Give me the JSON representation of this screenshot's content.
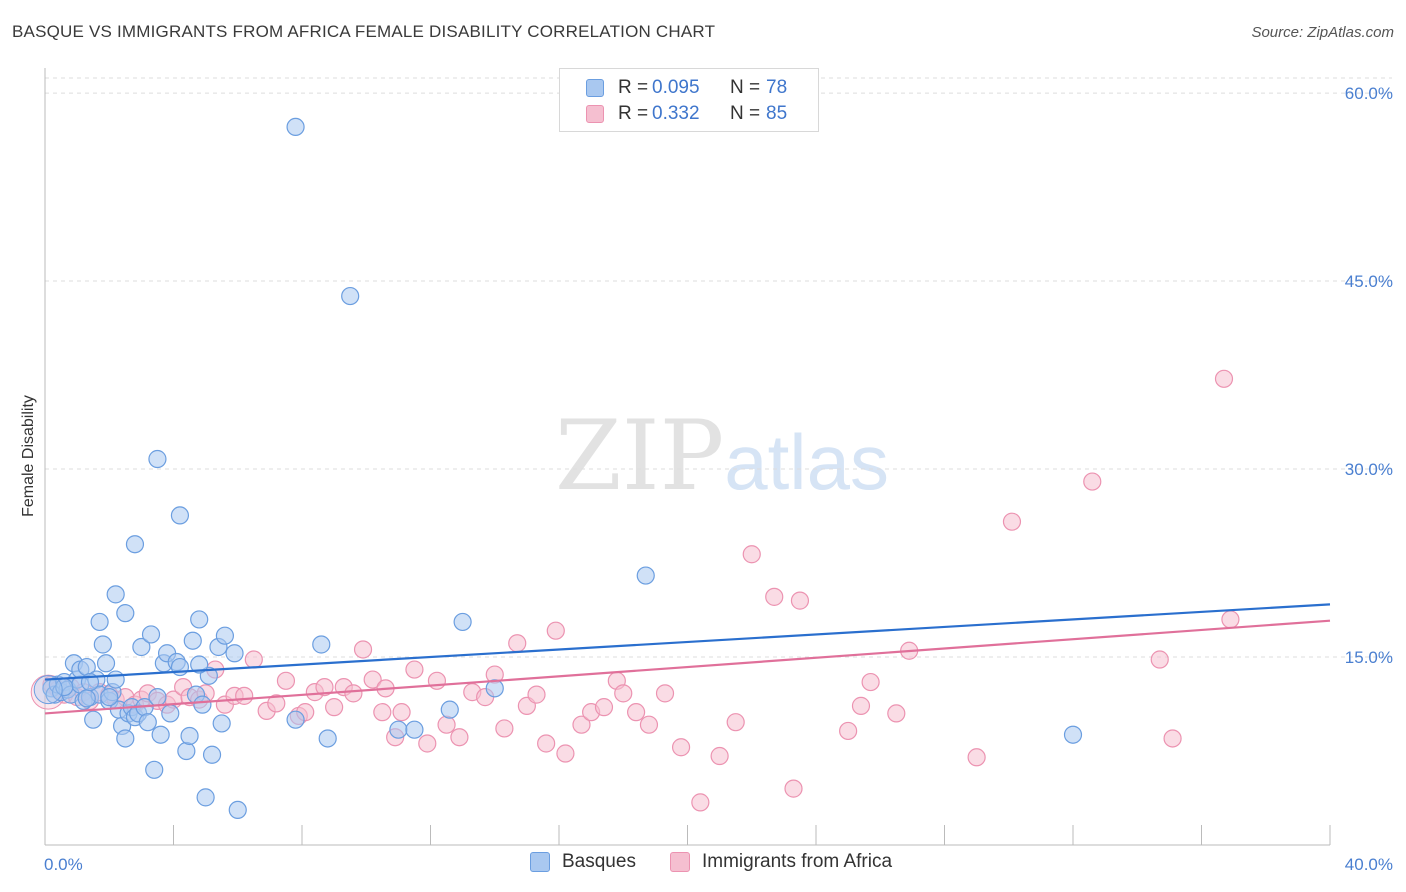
{
  "title": "BASQUE VS IMMIGRANTS FROM AFRICA FEMALE DISABILITY CORRELATION CHART",
  "source": "Source: ZipAtlas.com",
  "watermark": {
    "zip": "ZIP",
    "atlas": "atlas"
  },
  "legend": {
    "rows": [
      {
        "r_label": "R =",
        "r_value": "0.095",
        "n_label": "N =",
        "n_value": "78"
      },
      {
        "r_label": "R =",
        "r_value": "0.332",
        "n_label": "N =",
        "n_value": "85"
      }
    ]
  },
  "bottom_legend": [
    "Basques",
    "Immigrants from Africa"
  ],
  "colors": {
    "basques_fill": "#a9c8f0",
    "basques_stroke": "#6b9ee0",
    "basques_line": "#2a6fce",
    "africa_fill": "#f5bfd0",
    "africa_stroke": "#ec93b1",
    "africa_line": "#e0709a",
    "tick_text": "#4a7fd0",
    "grid": "#dddddd"
  },
  "chart_data": {
    "type": "scatter",
    "title": "BASQUE VS IMMIGRANTS FROM AFRICA FEMALE DISABILITY CORRELATION CHART",
    "xlabel": "",
    "ylabel": "Female Disability",
    "xlim": [
      0,
      40
    ],
    "ylim": [
      0,
      62
    ],
    "x_ticks": [
      "0.0%",
      "40.0%"
    ],
    "y_ticks": [
      {
        "value": 15,
        "label": "15.0%"
      },
      {
        "value": 30,
        "label": "30.0%"
      },
      {
        "value": 45,
        "label": "45.0%"
      },
      {
        "value": 60,
        "label": "60.0%"
      }
    ],
    "grid": "horizontal dashed",
    "legend_position": "top-center",
    "series": [
      {
        "name": "Basques",
        "r": 0.095,
        "n": 78,
        "trend": {
          "x": [
            0,
            40
          ],
          "y": [
            13.2,
            19.2
          ]
        },
        "points": [
          [
            0.2,
            12.5
          ],
          [
            0.3,
            12.0
          ],
          [
            0.4,
            12.8
          ],
          [
            0.5,
            12.2
          ],
          [
            0.6,
            13.0
          ],
          [
            0.7,
            12.4
          ],
          [
            0.8,
            12.0
          ],
          [
            0.9,
            14.5
          ],
          [
            1.0,
            13.2
          ],
          [
            1.1,
            12.8
          ],
          [
            1.1,
            14.0
          ],
          [
            1.2,
            11.5
          ],
          [
            1.3,
            14.2
          ],
          [
            1.4,
            11.8
          ],
          [
            1.5,
            10.0
          ],
          [
            1.6,
            13.2
          ],
          [
            1.7,
            12.0
          ],
          [
            1.8,
            16.0
          ],
          [
            1.9,
            14.5
          ],
          [
            2.0,
            11.5
          ],
          [
            2.1,
            12.2
          ],
          [
            2.2,
            13.2
          ],
          [
            2.3,
            10.8
          ],
          [
            2.4,
            9.5
          ],
          [
            2.5,
            8.5
          ],
          [
            2.6,
            10.5
          ],
          [
            2.7,
            11.0
          ],
          [
            2.8,
            10.2
          ],
          [
            2.9,
            10.5
          ],
          [
            3.0,
            15.8
          ],
          [
            3.1,
            11.0
          ],
          [
            3.2,
            9.8
          ],
          [
            3.3,
            16.8
          ],
          [
            3.4,
            6.0
          ],
          [
            3.5,
            11.8
          ],
          [
            3.6,
            8.8
          ],
          [
            3.7,
            14.5
          ],
          [
            3.8,
            15.3
          ],
          [
            3.9,
            10.5
          ],
          [
            4.1,
            14.6
          ],
          [
            4.4,
            7.5
          ],
          [
            4.5,
            8.7
          ],
          [
            4.6,
            16.3
          ],
          [
            4.7,
            12.0
          ],
          [
            4.9,
            11.2
          ],
          [
            5.1,
            13.5
          ],
          [
            5.2,
            7.2
          ],
          [
            5.4,
            15.8
          ],
          [
            5.5,
            9.7
          ],
          [
            5.6,
            16.7
          ],
          [
            5.9,
            15.3
          ],
          [
            1.7,
            17.8
          ],
          [
            2.2,
            20.0
          ],
          [
            2.5,
            18.5
          ],
          [
            2.8,
            24.0
          ],
          [
            3.5,
            30.8
          ],
          [
            4.2,
            26.3
          ],
          [
            4.8,
            18.0
          ],
          [
            7.8,
            57.3
          ],
          [
            9.5,
            43.8
          ],
          [
            7.8,
            10.0
          ],
          [
            8.8,
            8.5
          ],
          [
            8.6,
            16.0
          ],
          [
            11.0,
            9.2
          ],
          [
            11.5,
            9.2
          ],
          [
            12.6,
            10.8
          ],
          [
            13.0,
            17.8
          ],
          [
            14.0,
            12.5
          ],
          [
            18.7,
            21.5
          ],
          [
            32.0,
            8.8
          ],
          [
            5.0,
            3.8
          ],
          [
            6.0,
            2.8
          ],
          [
            4.2,
            14.2
          ],
          [
            4.8,
            14.4
          ],
          [
            1.3,
            11.7
          ],
          [
            2.0,
            11.8
          ],
          [
            0.6,
            12.6
          ],
          [
            1.4,
            13.0
          ]
        ]
      },
      {
        "name": "Immigrants from Africa",
        "r": 0.332,
        "n": 85,
        "trend": {
          "x": [
            0,
            40
          ],
          "y": [
            10.5,
            17.9
          ]
        },
        "points": [
          [
            0.2,
            12.8
          ],
          [
            0.4,
            12.4
          ],
          [
            0.6,
            12.0
          ],
          [
            0.8,
            12.6
          ],
          [
            1.0,
            11.8
          ],
          [
            1.2,
            12.2
          ],
          [
            1.4,
            11.5
          ],
          [
            1.7,
            12.2
          ],
          [
            2.0,
            12.0
          ],
          [
            2.2,
            11.6
          ],
          [
            2.5,
            11.8
          ],
          [
            2.8,
            11.2
          ],
          [
            3.0,
            11.6
          ],
          [
            3.2,
            12.1
          ],
          [
            3.5,
            11.5
          ],
          [
            3.8,
            11.2
          ],
          [
            4.0,
            11.6
          ],
          [
            4.3,
            12.6
          ],
          [
            4.5,
            11.8
          ],
          [
            4.8,
            11.6
          ],
          [
            5.0,
            12.1
          ],
          [
            5.3,
            14.0
          ],
          [
            5.6,
            11.2
          ],
          [
            5.9,
            11.9
          ],
          [
            6.2,
            11.9
          ],
          [
            6.5,
            14.8
          ],
          [
            6.9,
            10.7
          ],
          [
            7.2,
            11.3
          ],
          [
            7.5,
            13.1
          ],
          [
            7.9,
            10.3
          ],
          [
            8.1,
            10.6
          ],
          [
            8.4,
            12.2
          ],
          [
            8.7,
            12.6
          ],
          [
            9.0,
            11.0
          ],
          [
            9.3,
            12.6
          ],
          [
            9.6,
            12.1
          ],
          [
            9.9,
            15.6
          ],
          [
            10.2,
            13.2
          ],
          [
            10.5,
            10.6
          ],
          [
            10.9,
            8.6
          ],
          [
            11.1,
            10.6
          ],
          [
            11.5,
            14.0
          ],
          [
            11.9,
            8.1
          ],
          [
            12.2,
            13.1
          ],
          [
            12.5,
            9.6
          ],
          [
            12.9,
            8.6
          ],
          [
            13.3,
            12.2
          ],
          [
            13.7,
            11.8
          ],
          [
            14.0,
            13.6
          ],
          [
            14.3,
            9.3
          ],
          [
            14.7,
            16.1
          ],
          [
            15.0,
            11.1
          ],
          [
            15.3,
            12.0
          ],
          [
            15.6,
            8.1
          ],
          [
            15.9,
            17.1
          ],
          [
            16.2,
            7.3
          ],
          [
            16.7,
            9.6
          ],
          [
            17.0,
            10.6
          ],
          [
            17.4,
            11.0
          ],
          [
            17.8,
            13.1
          ],
          [
            18.0,
            12.1
          ],
          [
            18.4,
            10.6
          ],
          [
            18.8,
            9.6
          ],
          [
            19.3,
            12.1
          ],
          [
            19.8,
            7.8
          ],
          [
            20.4,
            3.4
          ],
          [
            21.0,
            7.1
          ],
          [
            21.5,
            9.8
          ],
          [
            22.0,
            23.2
          ],
          [
            22.7,
            19.8
          ],
          [
            23.5,
            19.5
          ],
          [
            25.0,
            9.1
          ],
          [
            25.4,
            11.1
          ],
          [
            25.7,
            13.0
          ],
          [
            26.5,
            10.5
          ],
          [
            26.9,
            15.5
          ],
          [
            29.0,
            7.0
          ],
          [
            30.1,
            25.8
          ],
          [
            32.6,
            29.0
          ],
          [
            34.7,
            14.8
          ],
          [
            35.1,
            8.5
          ],
          [
            36.7,
            37.2
          ],
          [
            36.9,
            18.0
          ],
          [
            23.3,
            4.5
          ],
          [
            10.6,
            12.5
          ]
        ]
      }
    ]
  }
}
